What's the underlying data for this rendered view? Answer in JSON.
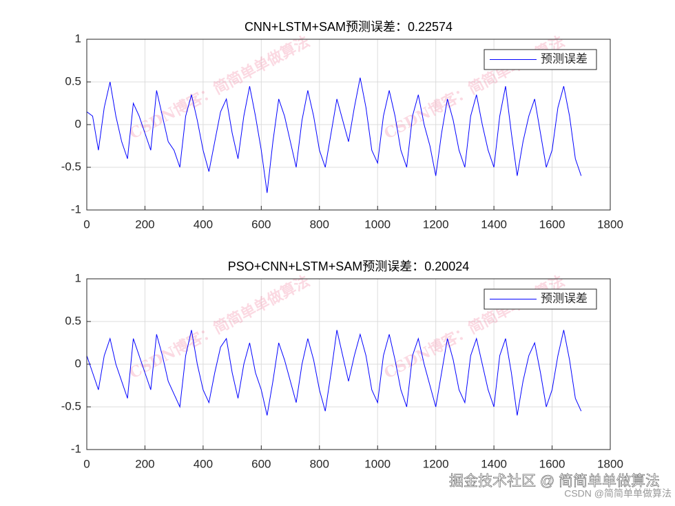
{
  "chart_data": [
    {
      "type": "line",
      "title": "CNN+LSTM+SAM预测误差：0.22574",
      "x": [
        0,
        20,
        40,
        60,
        80,
        100,
        120,
        140,
        160,
        180,
        200,
        220,
        240,
        260,
        280,
        300,
        320,
        340,
        360,
        380,
        400,
        420,
        440,
        460,
        480,
        500,
        520,
        540,
        560,
        580,
        600,
        620,
        640,
        660,
        680,
        700,
        720,
        740,
        760,
        780,
        800,
        820,
        840,
        860,
        880,
        900,
        920,
        940,
        960,
        980,
        1000,
        1020,
        1040,
        1060,
        1080,
        1100,
        1120,
        1140,
        1160,
        1180,
        1200,
        1220,
        1240,
        1260,
        1280,
        1300,
        1320,
        1340,
        1360,
        1380,
        1400,
        1420,
        1440,
        1460,
        1480,
        1500,
        1520,
        1540,
        1560,
        1580,
        1600,
        1620,
        1640,
        1660,
        1680,
        1700
      ],
      "series": [
        {
          "name": "预测误差",
          "color": "#0000ff",
          "values": [
            0.15,
            0.1,
            -0.3,
            0.2,
            0.5,
            0.1,
            -0.2,
            -0.4,
            0.25,
            0.1,
            -0.1,
            -0.3,
            0.4,
            0.1,
            -0.2,
            -0.3,
            -0.5,
            0.1,
            0.35,
            0.05,
            -0.3,
            -0.55,
            -0.2,
            0.15,
            0.3,
            -0.1,
            -0.4,
            0.1,
            0.45,
            0.1,
            -0.3,
            -0.8,
            -0.2,
            0.3,
            0.1,
            -0.2,
            -0.5,
            0.05,
            0.4,
            0.1,
            -0.3,
            -0.5,
            -0.1,
            0.3,
            0.05,
            -0.2,
            0.2,
            0.55,
            0.2,
            -0.3,
            -0.45,
            0.1,
            0.4,
            0.1,
            -0.3,
            -0.5,
            0.1,
            0.35,
            0.0,
            -0.25,
            -0.6,
            -0.1,
            0.3,
            0.05,
            -0.3,
            -0.5,
            0.1,
            0.35,
            0.0,
            -0.3,
            -0.5,
            0.1,
            0.45,
            -0.1,
            -0.6,
            -0.2,
            0.1,
            0.3,
            -0.1,
            -0.5,
            -0.3,
            0.2,
            0.45,
            0.1,
            -0.4,
            -0.6
          ]
        }
      ],
      "xlim": [
        0,
        1800
      ],
      "xticks": [
        0,
        200,
        400,
        600,
        800,
        1000,
        1200,
        1400,
        1600,
        1800
      ],
      "ylim": [
        -1,
        1
      ],
      "yticks": [
        -1,
        -0.5,
        0,
        0.5,
        1
      ],
      "grid": true,
      "legend": "upper right"
    },
    {
      "type": "line",
      "title": "PSO+CNN+LSTM+SAM预测误差：0.20024",
      "x": [
        0,
        20,
        40,
        60,
        80,
        100,
        120,
        140,
        160,
        180,
        200,
        220,
        240,
        260,
        280,
        300,
        320,
        340,
        360,
        380,
        400,
        420,
        440,
        460,
        480,
        500,
        520,
        540,
        560,
        580,
        600,
        620,
        640,
        660,
        680,
        700,
        720,
        740,
        760,
        780,
        800,
        820,
        840,
        860,
        880,
        900,
        920,
        940,
        960,
        980,
        1000,
        1020,
        1040,
        1060,
        1080,
        1100,
        1120,
        1140,
        1160,
        1180,
        1200,
        1220,
        1240,
        1260,
        1280,
        1300,
        1320,
        1340,
        1360,
        1380,
        1400,
        1420,
        1440,
        1460,
        1480,
        1500,
        1520,
        1540,
        1560,
        1580,
        1600,
        1620,
        1640,
        1660,
        1680,
        1700
      ],
      "series": [
        {
          "name": "预测误差",
          "color": "#0000ff",
          "values": [
            0.1,
            -0.1,
            -0.3,
            0.1,
            0.3,
            0.0,
            -0.2,
            -0.4,
            0.3,
            0.1,
            -0.1,
            -0.3,
            0.35,
            0.1,
            -0.2,
            -0.35,
            -0.5,
            0.1,
            0.4,
            0.0,
            -0.3,
            -0.45,
            -0.1,
            0.2,
            0.3,
            -0.1,
            -0.4,
            0.0,
            0.25,
            -0.1,
            -0.3,
            -0.6,
            -0.2,
            0.25,
            0.05,
            -0.2,
            -0.45,
            0.0,
            0.3,
            0.05,
            -0.3,
            -0.55,
            -0.1,
            0.4,
            0.1,
            -0.2,
            0.1,
            0.35,
            0.1,
            -0.3,
            -0.45,
            0.1,
            0.35,
            0.05,
            -0.3,
            -0.5,
            0.1,
            0.3,
            0.0,
            -0.25,
            -0.5,
            -0.1,
            0.3,
            0.05,
            -0.3,
            -0.45,
            0.1,
            0.3,
            0.0,
            -0.3,
            -0.5,
            0.1,
            0.3,
            -0.1,
            -0.6,
            -0.2,
            0.1,
            0.25,
            -0.1,
            -0.5,
            -0.3,
            0.1,
            0.4,
            0.05,
            -0.4,
            -0.55
          ]
        }
      ],
      "xlim": [
        0,
        1800
      ],
      "xticks": [
        0,
        200,
        400,
        600,
        800,
        1000,
        1200,
        1400,
        1600,
        1800
      ],
      "ylim": [
        -1,
        1
      ],
      "yticks": [
        -1,
        -0.5,
        0,
        0.5,
        1
      ],
      "grid": true,
      "legend": "upper right"
    }
  ],
  "watermark": "CSDN博客：简简单单做算法",
  "footer": {
    "main": "掘金技术社区 @ 简简单单做算法",
    "sub": "CSDN @简简单单做算法"
  }
}
